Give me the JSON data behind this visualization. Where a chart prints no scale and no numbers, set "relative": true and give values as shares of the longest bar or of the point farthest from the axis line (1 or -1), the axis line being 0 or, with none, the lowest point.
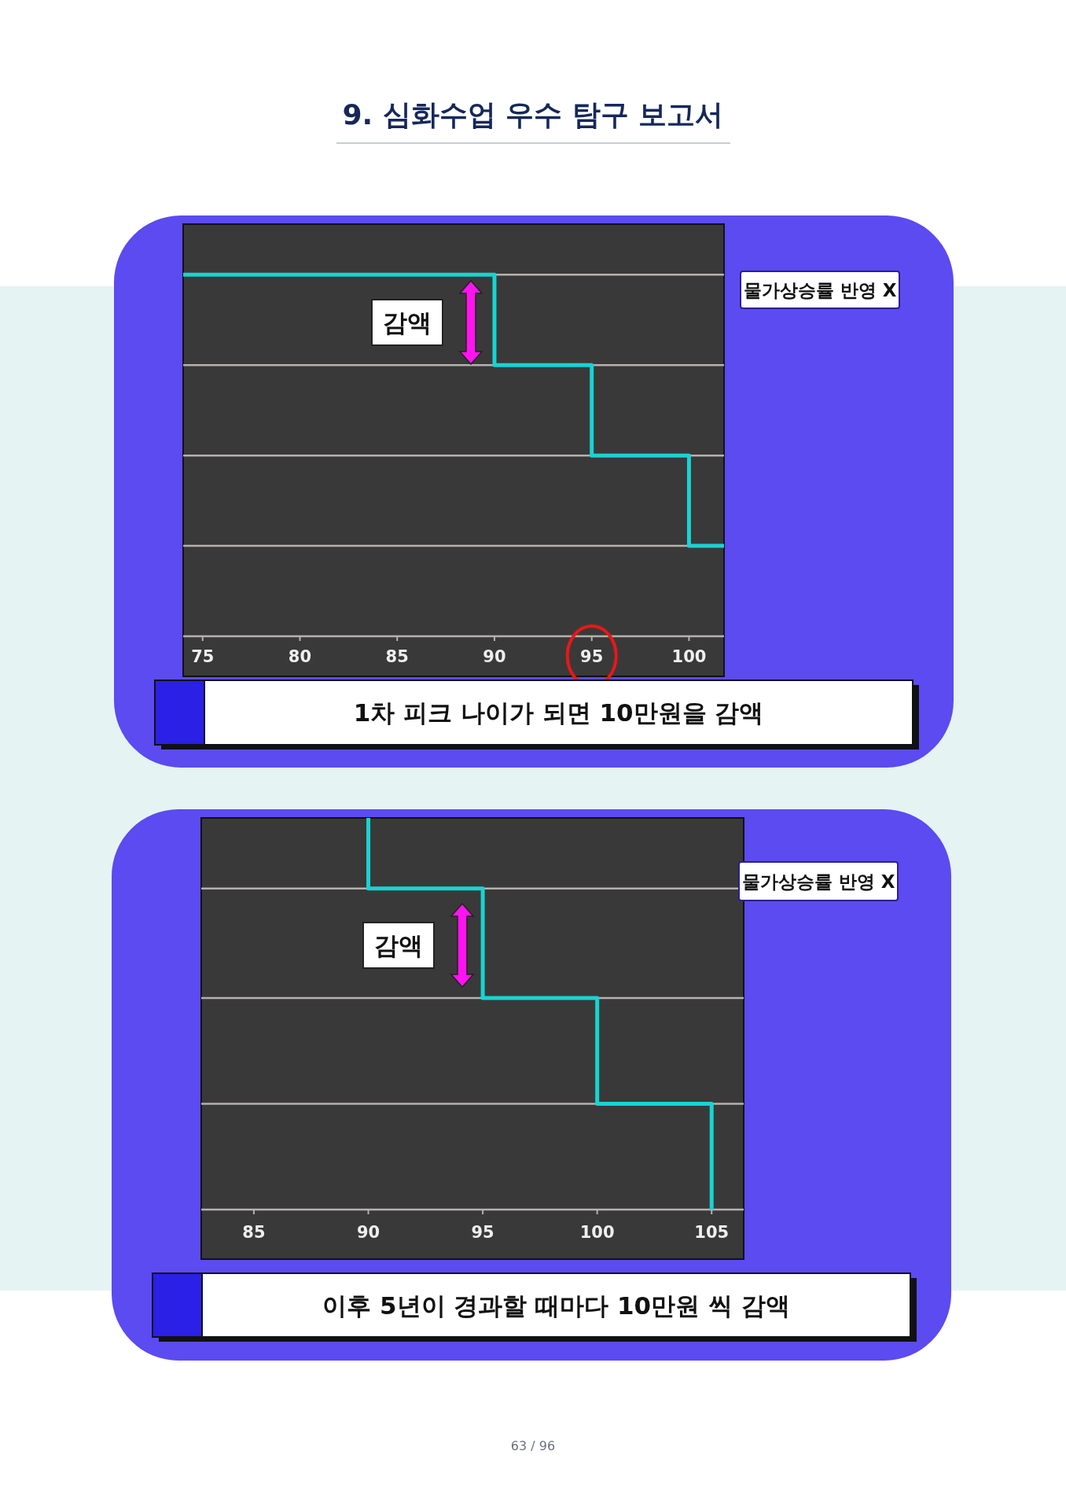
{
  "chart_data": [
    {
      "type": "step",
      "title": "9. 심화수업 우수 탐구 보고서",
      "relative": true,
      "grid": "y",
      "x": [
        74,
        90,
        95,
        100,
        101.8
      ],
      "series": [
        {
          "color": "#19d3d3",
          "values": [
            1,
            0.75,
            0.5,
            0.25,
            0.25
          ]
        }
      ],
      "xlim": [
        74,
        101.8
      ],
      "xticks": [
        75,
        80,
        85,
        90,
        95,
        100
      ],
      "annotations": [
        "감액",
        "물가상승률 반영 X",
        "1차 피크 나이가 되면 10만원을 감액"
      ]
    },
    {
      "type": "step",
      "relative": true,
      "grid": "y",
      "x": [
        90,
        90,
        95,
        100,
        105
      ],
      "series": [
        {
          "color": "#19d3d3",
          "values": [
            1,
            0.82,
            0.54,
            0.27,
            0
          ]
        }
      ],
      "xlim": [
        82.7,
        106.4
      ],
      "xticks": [
        85,
        90,
        95,
        100,
        105
      ],
      "annotations": [
        "감액",
        "물가상승률 반영 X",
        "이후 5년이 경과할 때마다 10만원 씩 감액",
        "63 / 96"
      ]
    }
  ]
}
